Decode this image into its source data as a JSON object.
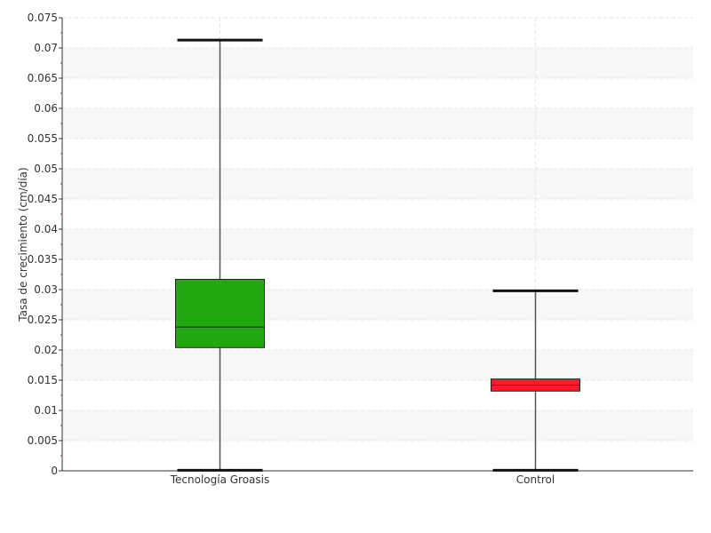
{
  "chart_data": {
    "type": "box",
    "title": "",
    "xlabel": "",
    "ylabel": "Tasa de crecimiento (cm/día)",
    "ylim": [
      0,
      0.075
    ],
    "yticks": [
      0,
      0.005,
      0.01,
      0.015,
      0.02,
      0.025,
      0.03,
      0.035,
      0.04,
      0.045,
      0.05,
      0.055,
      0.06,
      0.065,
      0.07,
      0.075
    ],
    "ytick_labels": [
      "0",
      "0.005",
      "0.01",
      "0.015",
      "0.02",
      "0.025",
      "0.03",
      "0.035",
      "0.04",
      "0.045",
      "0.05",
      "0.055",
      "0.06",
      "0.065",
      "0.07",
      "0.075"
    ],
    "categories": [
      "Tecnología Groasis",
      "Control"
    ],
    "boxes": [
      {
        "category": "Tecnología Groasis",
        "min": 0.0001,
        "q1": 0.0204,
        "median": 0.0238,
        "q3": 0.0317,
        "max": 0.0713,
        "color": "#22a80f"
      },
      {
        "category": "Control",
        "min": 0.0001,
        "q1": 0.0132,
        "median": 0.0142,
        "q3": 0.0152,
        "max": 0.0298,
        "color": "#ff1a2a"
      }
    ],
    "grid": true,
    "banded_background": true,
    "legend": "none"
  }
}
